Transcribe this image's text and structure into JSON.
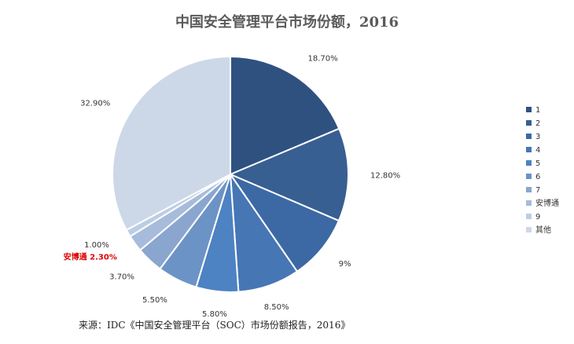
{
  "chart_data": {
    "type": "pie",
    "title": "中国安全管理平台市场份额，2016",
    "slices": [
      {
        "label": "1",
        "value": 18.7,
        "value_label": "18.70%",
        "color": "#2f5180"
      },
      {
        "label": "2",
        "value": 12.8,
        "value_label": "12.80%",
        "color": "#385f91"
      },
      {
        "label": "3",
        "value": 9.0,
        "value_label": "9%",
        "color": "#3c69a4"
      },
      {
        "label": "4",
        "value": 8.5,
        "value_label": "8.50%",
        "color": "#4676b4"
      },
      {
        "label": "5",
        "value": 5.8,
        "value_label": "5.80%",
        "color": "#4d82c3"
      },
      {
        "label": "6",
        "value": 5.5,
        "value_label": "5.50%",
        "color": "#6c93c6"
      },
      {
        "label": "7",
        "value": 3.7,
        "value_label": "3.70%",
        "color": "#8aa6cf"
      },
      {
        "label": "安博通",
        "value": 2.3,
        "value_label": "安博通 2.30%",
        "color": "#a7bcda",
        "highlight": true
      },
      {
        "label": "9",
        "value": 1.0,
        "value_label": "1.00%",
        "color": "#bccde4"
      },
      {
        "label": "其他",
        "value": 32.9,
        "value_label": "32.90%",
        "color": "#ccd8e8"
      }
    ],
    "legend_position": "right",
    "highlight_color": "#e00000"
  },
  "source": "来源：IDC《中国安全管理平台（SOC）市场份额报告，2016》"
}
